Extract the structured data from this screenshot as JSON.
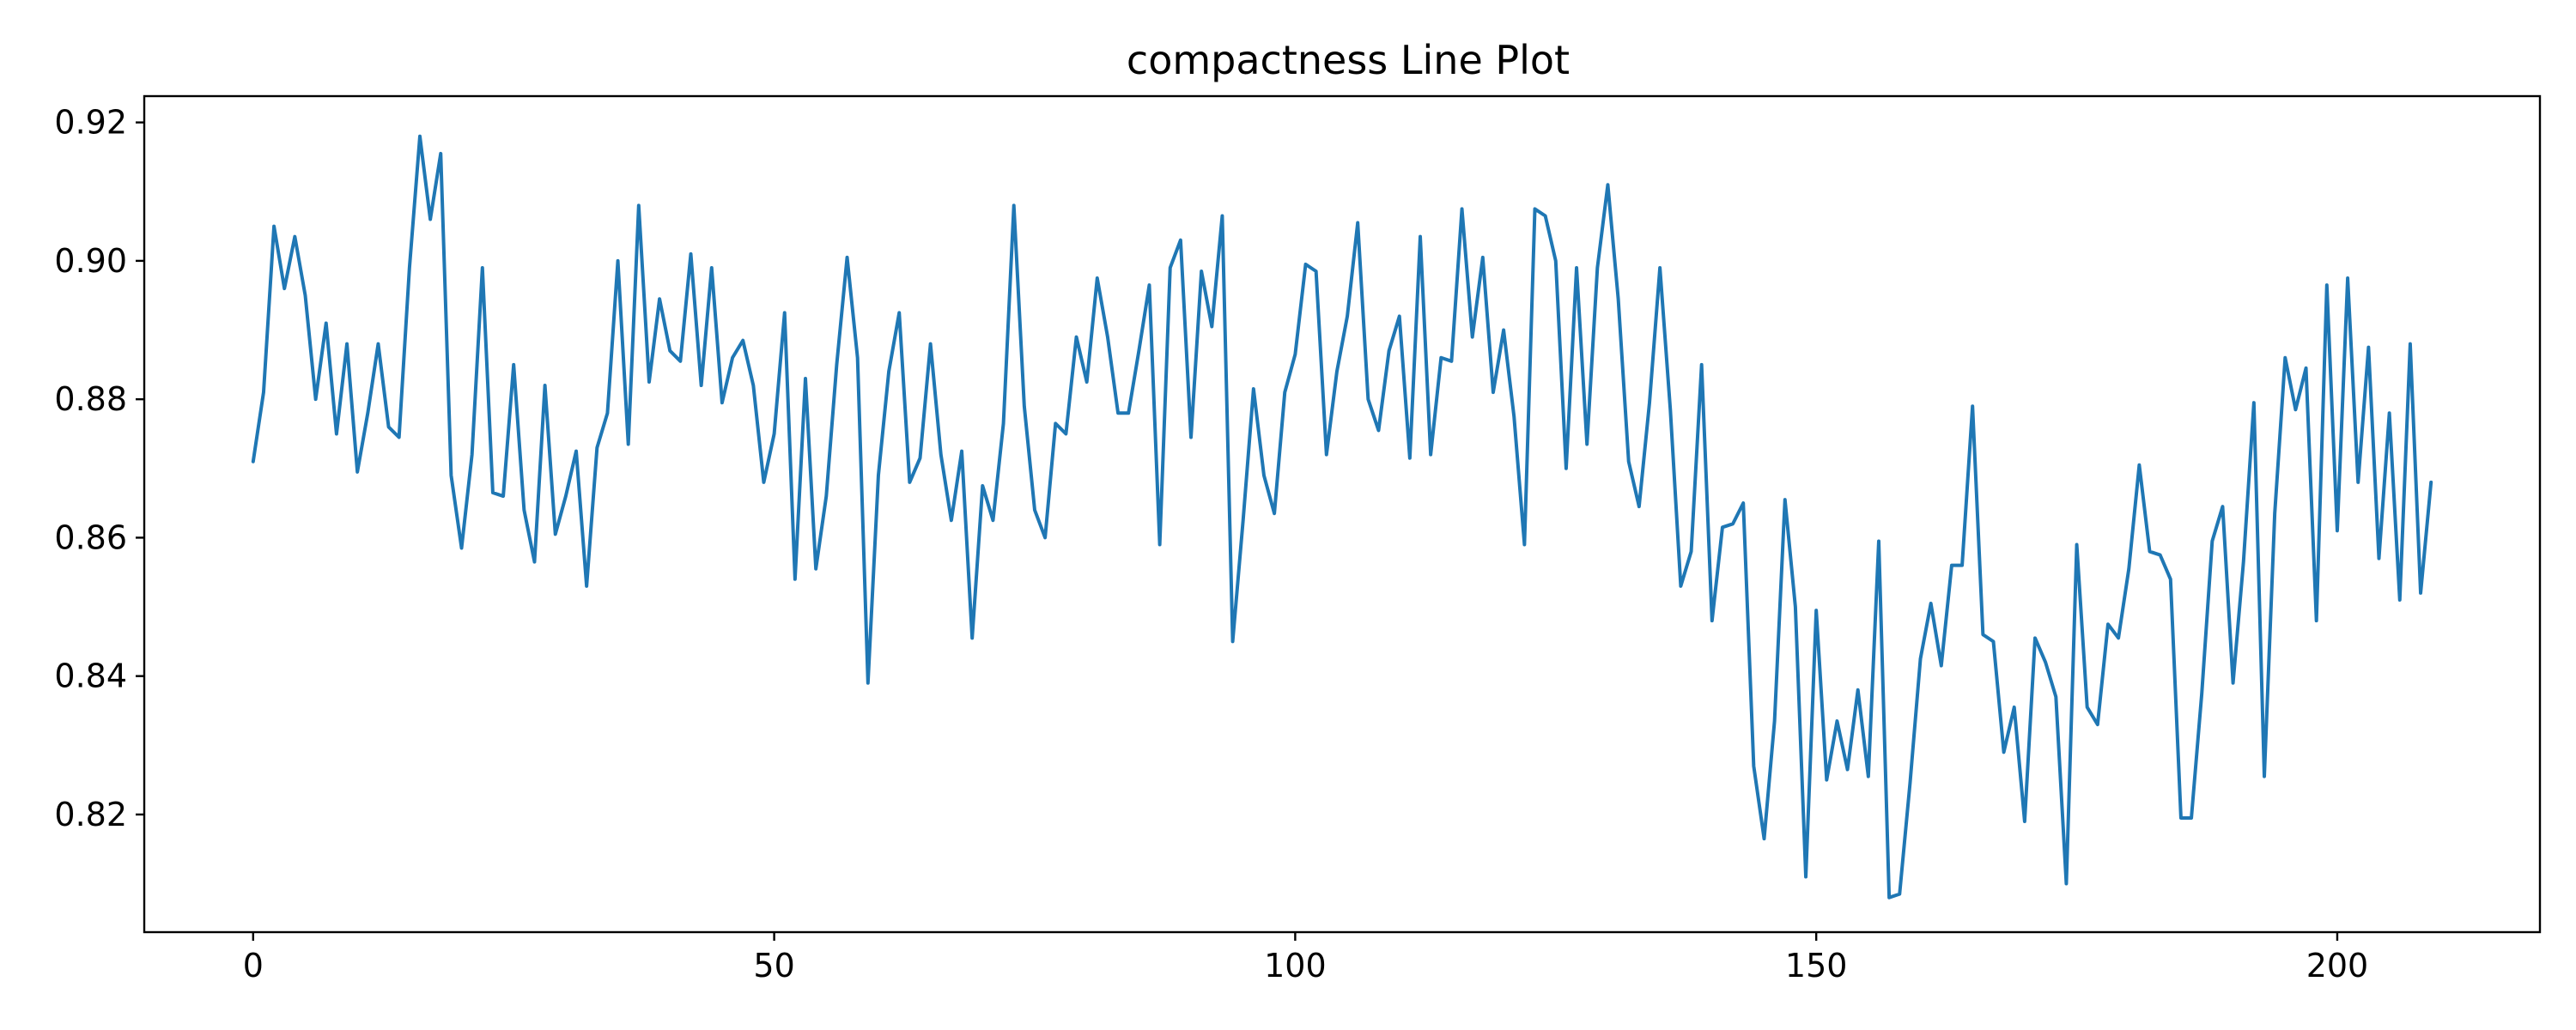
{
  "chart_data": {
    "type": "line",
    "title": "compactness Line Plot",
    "xlabel": "",
    "ylabel": "",
    "xlim": [
      -10.45,
      219.45
    ],
    "ylim": [
      0.803,
      0.9238
    ],
    "grid": false,
    "legend": "none",
    "x_ticks": [
      0,
      50,
      100,
      150,
      200
    ],
    "x_tick_labels": [
      "0",
      "50",
      "100",
      "150",
      "200"
    ],
    "y_ticks": [
      0.82,
      0.84,
      0.86,
      0.88,
      0.9,
      0.92
    ],
    "y_tick_labels": [
      "0.82",
      "0.84",
      "0.86",
      "0.88",
      "0.90",
      "0.92"
    ],
    "series": [
      {
        "color": "#1f77b4",
        "x_start": 0,
        "values": [
          0.871,
          0.881,
          0.905,
          0.896,
          0.9035,
          0.895,
          0.88,
          0.891,
          0.875,
          0.888,
          0.8695,
          0.878,
          0.888,
          0.876,
          0.8745,
          0.899,
          0.918,
          0.906,
          0.9155,
          0.869,
          0.8585,
          0.872,
          0.899,
          0.8665,
          0.866,
          0.885,
          0.864,
          0.8565,
          0.882,
          0.8605,
          0.866,
          0.8725,
          0.853,
          0.873,
          0.878,
          0.9,
          0.8735,
          0.908,
          0.8825,
          0.8945,
          0.887,
          0.8855,
          0.901,
          0.882,
          0.899,
          0.8795,
          0.886,
          0.8885,
          0.882,
          0.868,
          0.875,
          0.8925,
          0.854,
          0.883,
          0.8555,
          0.866,
          0.885,
          0.9005,
          0.886,
          0.839,
          0.869,
          0.884,
          0.8925,
          0.868,
          0.8715,
          0.888,
          0.872,
          0.8625,
          0.8725,
          0.8455,
          0.8675,
          0.8625,
          0.8765,
          0.908,
          0.879,
          0.864,
          0.86,
          0.8765,
          0.875,
          0.889,
          0.8825,
          0.8975,
          0.889,
          0.878,
          0.878,
          0.887,
          0.8965,
          0.859,
          0.899,
          0.903,
          0.8745,
          0.8985,
          0.8905,
          0.9065,
          0.845,
          0.8625,
          0.8815,
          0.869,
          0.8635,
          0.881,
          0.8865,
          0.8995,
          0.8985,
          0.872,
          0.884,
          0.892,
          0.9055,
          0.88,
          0.8755,
          0.887,
          0.892,
          0.8715,
          0.9035,
          0.872,
          0.886,
          0.8855,
          0.9075,
          0.889,
          0.9005,
          0.881,
          0.89,
          0.8775,
          0.859,
          0.9075,
          0.9065,
          0.9,
          0.87,
          0.899,
          0.8735,
          0.899,
          0.911,
          0.8945,
          0.871,
          0.8645,
          0.8795,
          0.899,
          0.8785,
          0.853,
          0.858,
          0.885,
          0.848,
          0.8615,
          0.862,
          0.865,
          0.827,
          0.8165,
          0.8335,
          0.8655,
          0.85,
          0.811,
          0.8495,
          0.825,
          0.8335,
          0.8265,
          0.838,
          0.8255,
          0.8595,
          0.808,
          0.8085,
          0.8245,
          0.8425,
          0.8505,
          0.8415,
          0.856,
          0.856,
          0.879,
          0.846,
          0.845,
          0.829,
          0.8355,
          0.819,
          0.8455,
          0.842,
          0.837,
          0.81,
          0.859,
          0.8355,
          0.833,
          0.8475,
          0.8455,
          0.8555,
          0.8705,
          0.858,
          0.8575,
          0.854,
          0.8195,
          0.8195,
          0.8375,
          0.8595,
          0.8645,
          0.839,
          0.8565,
          0.8795,
          0.8255,
          0.8635,
          0.886,
          0.8785,
          0.8845,
          0.848,
          0.8965,
          0.861,
          0.8975,
          0.868,
          0.8875,
          0.857,
          0.878,
          0.851,
          0.888,
          0.852,
          0.868
        ]
      }
    ]
  }
}
